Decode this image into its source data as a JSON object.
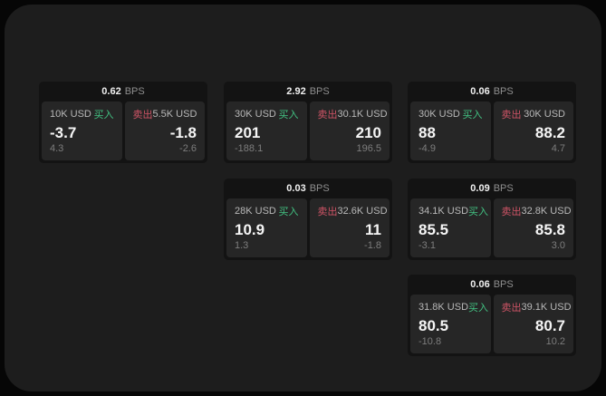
{
  "labels": {
    "bps": "BPS",
    "buy": "买入",
    "sell": "卖出"
  },
  "colors": {
    "buy_green": "#42c282",
    "sell_red": "#cf5466",
    "panel_bg": "#1d1d1d",
    "card_bg": "#131313",
    "pane_bg": "#262626",
    "outer_bg": "#060606"
  },
  "cards": [
    {
      "bps": "0.62",
      "buy": {
        "amount": "10K USD",
        "value": "-3.7",
        "sub": "4.3"
      },
      "sell": {
        "amount": "5.5K USD",
        "value": "-1.8",
        "sub": "-2.6"
      }
    },
    {
      "bps": "2.92",
      "buy": {
        "amount": "30K USD",
        "value": "201",
        "sub": "-188.1"
      },
      "sell": {
        "amount": "30.1K USD",
        "value": "210",
        "sub": "196.5"
      }
    },
    {
      "bps": "0.06",
      "buy": {
        "amount": "30K USD",
        "value": "88",
        "sub": "-4.9"
      },
      "sell": {
        "amount": "30K USD",
        "value": "88.2",
        "sub": "4.7"
      }
    },
    {
      "bps": "0.03",
      "buy": {
        "amount": "28K USD",
        "value": "10.9",
        "sub": "1.3"
      },
      "sell": {
        "amount": "32.6K USD",
        "value": "11",
        "sub": "-1.8"
      }
    },
    {
      "bps": "0.09",
      "buy": {
        "amount": "34.1K USD",
        "value": "85.5",
        "sub": "-3.1"
      },
      "sell": {
        "amount": "32.8K USD",
        "value": "85.8",
        "sub": "3.0"
      }
    },
    {
      "bps": "0.06",
      "buy": {
        "amount": "31.8K USD",
        "value": "80.5",
        "sub": "-10.8"
      },
      "sell": {
        "amount": "39.1K USD",
        "value": "80.7",
        "sub": "10.2"
      }
    }
  ]
}
